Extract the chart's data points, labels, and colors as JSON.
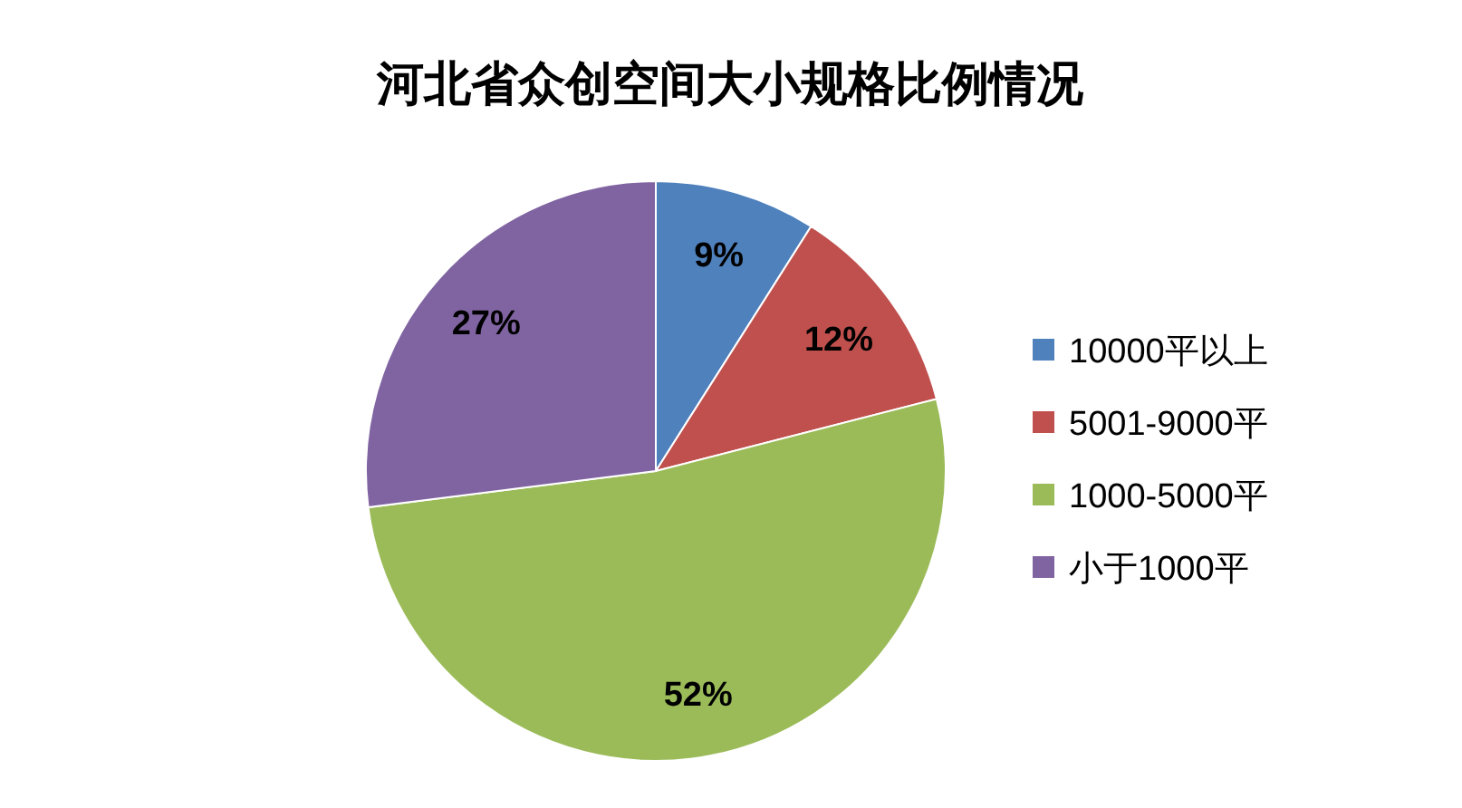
{
  "chart_data": {
    "type": "pie",
    "title": "河北省众创空间大小规格比例情况",
    "categories": [
      "10000平以上",
      "5001-9000平",
      "1000-5000平",
      "小于1000平"
    ],
    "values": [
      9,
      12,
      52,
      27
    ],
    "colors": [
      "#4f81bd",
      "#c0504d",
      "#9bbb59",
      "#8064a2"
    ],
    "value_labels": [
      "9%",
      "12%",
      "52%",
      "27%"
    ],
    "legend": "right"
  }
}
